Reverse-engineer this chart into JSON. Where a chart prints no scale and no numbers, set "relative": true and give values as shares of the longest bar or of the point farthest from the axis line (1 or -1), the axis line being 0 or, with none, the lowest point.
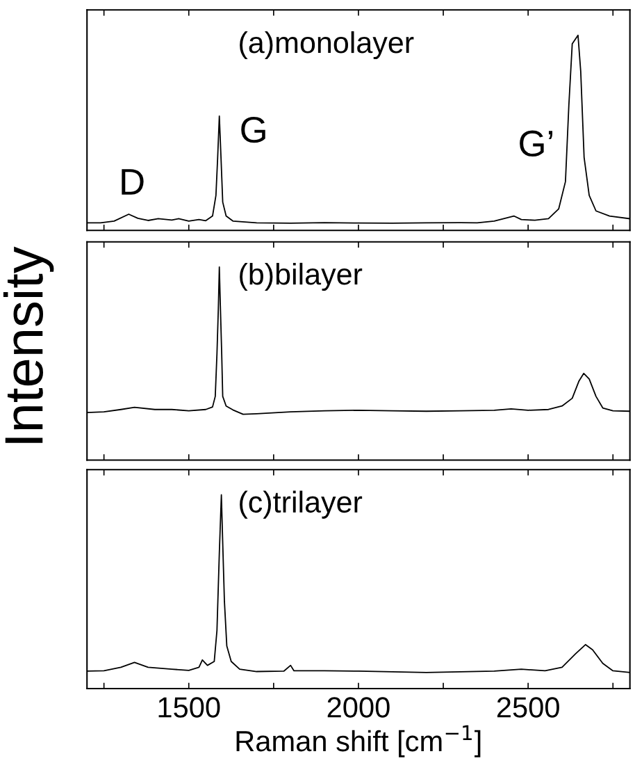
{
  "chart_data": [
    {
      "type": "line",
      "relative": true,
      "annotations": [
        "(a)monolayer",
        "D",
        "G",
        "G’"
      ],
      "xlim": [
        1200,
        2800
      ],
      "xticks": [
        {
          "value": 1250,
          "label": null
        },
        {
          "value": 1500,
          "label": null
        },
        {
          "value": 1750,
          "label": null
        },
        {
          "value": 2000,
          "label": null
        },
        {
          "value": 2250,
          "label": null
        },
        {
          "value": 2500,
          "label": null
        },
        {
          "value": 2750,
          "label": null
        }
      ],
      "tick_labels": false,
      "series": [
        {
          "color": "#000000",
          "x": [
            1200,
            1240,
            1280,
            1323,
            1350,
            1380,
            1410,
            1450,
            1470,
            1500,
            1530,
            1550,
            1570,
            1580,
            1585,
            1590,
            1595,
            1600,
            1610,
            1630,
            1700,
            1800,
            1900,
            2000,
            2100,
            2200,
            2300,
            2350,
            2400,
            2458,
            2480,
            2520,
            2560,
            2590,
            2610,
            2620,
            2630,
            2647,
            2655,
            2665,
            2680,
            2700,
            2740,
            2800
          ],
          "values": [
            0.039,
            0.039,
            0.048,
            0.083,
            0.062,
            0.051,
            0.06,
            0.053,
            0.06,
            0.048,
            0.056,
            0.05,
            0.074,
            0.18,
            0.37,
            0.586,
            0.37,
            0.145,
            0.074,
            0.048,
            0.039,
            0.037,
            0.04,
            0.038,
            0.037,
            0.039,
            0.04,
            0.039,
            0.048,
            0.074,
            0.056,
            0.052,
            0.06,
            0.11,
            0.25,
            0.64,
            0.956,
            1.0,
            0.815,
            0.374,
            0.18,
            0.1,
            0.074,
            0.06
          ]
        }
      ]
    },
    {
      "type": "line",
      "relative": true,
      "ylabel": "Intensity",
      "annotations": [
        "(b)bilayer"
      ],
      "xlim": [
        1200,
        2800
      ],
      "xticks": [
        {
          "value": 1250,
          "label": null
        },
        {
          "value": 1500,
          "label": null
        },
        {
          "value": 1750,
          "label": null
        },
        {
          "value": 2000,
          "label": null
        },
        {
          "value": 2250,
          "label": null
        },
        {
          "value": 2500,
          "label": null
        },
        {
          "value": 2750,
          "label": null
        }
      ],
      "tick_labels": false,
      "series": [
        {
          "color": "#000000",
          "x": [
            1200,
            1250,
            1300,
            1340,
            1400,
            1450,
            1500,
            1550,
            1570,
            1578,
            1583,
            1587,
            1590,
            1593,
            1597,
            1600,
            1610,
            1630,
            1660,
            1700,
            1800,
            1900,
            2000,
            2100,
            2200,
            2300,
            2400,
            2450,
            2500,
            2560,
            2600,
            2630,
            2650,
            2664,
            2680,
            2700,
            2720,
            2750,
            2800
          ],
          "values": [
            0.246,
            0.25,
            0.262,
            0.273,
            0.262,
            0.262,
            0.255,
            0.262,
            0.275,
            0.33,
            0.55,
            0.78,
            1.0,
            0.8,
            0.55,
            0.33,
            0.28,
            0.26,
            0.237,
            0.24,
            0.25,
            0.255,
            0.258,
            0.255,
            0.253,
            0.255,
            0.258,
            0.265,
            0.258,
            0.262,
            0.28,
            0.32,
            0.41,
            0.449,
            0.42,
            0.33,
            0.27,
            0.255,
            0.253
          ]
        }
      ]
    },
    {
      "type": "line",
      "relative": true,
      "xlabel": "Raman shift [cm$^{−1}$]",
      "annotations": [
        "(c)trilayer"
      ],
      "xlim": [
        1200,
        2800
      ],
      "xticks": [
        {
          "value": 1250,
          "label": null
        },
        1500,
        {
          "value": 1750,
          "label": null
        },
        2000,
        {
          "value": 2250,
          "label": null
        },
        2500,
        {
          "value": 2750,
          "label": null
        }
      ],
      "tick_labels": "x",
      "series": [
        {
          "color": "#000000",
          "x": [
            1200,
            1250,
            1300,
            1340,
            1380,
            1450,
            1500,
            1530,
            1540,
            1555,
            1575,
            1583,
            1590,
            1596,
            1600,
            1605,
            1612,
            1625,
            1650,
            1700,
            1780,
            1800,
            1810,
            1900,
            2000,
            2100,
            2200,
            2300,
            2400,
            2480,
            2550,
            2600,
            2640,
            2669,
            2690,
            2720,
            2750,
            2800
          ],
          "values": [
            0.09,
            0.092,
            0.11,
            0.135,
            0.11,
            0.1,
            0.094,
            0.11,
            0.148,
            0.12,
            0.14,
            0.3,
            0.7,
            1.0,
            0.75,
            0.45,
            0.22,
            0.14,
            0.1,
            0.088,
            0.09,
            0.12,
            0.092,
            0.092,
            0.09,
            0.087,
            0.083,
            0.087,
            0.09,
            0.1,
            0.092,
            0.11,
            0.18,
            0.227,
            0.2,
            0.13,
            0.092,
            0.083
          ]
        }
      ]
    }
  ]
}
